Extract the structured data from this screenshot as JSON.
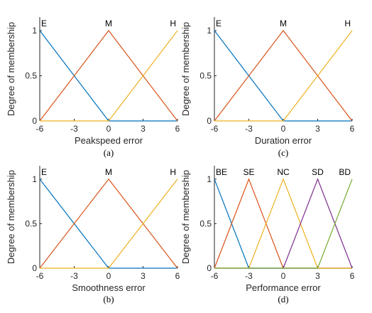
{
  "chart_data": [
    {
      "type": "line",
      "caption": "(a)",
      "xlabel": "Peakspeed error",
      "ylabel": "Degree of membership",
      "xlim": [
        -6,
        6
      ],
      "ylim": [
        0,
        1.15
      ],
      "xticks": [
        "-6",
        "-3",
        "0",
        "3",
        "6"
      ],
      "yticks": [
        "0",
        "0.5",
        "1"
      ],
      "series": [
        {
          "name": "E",
          "x": [
            -6,
            0,
            6
          ],
          "y": [
            1,
            0,
            0
          ]
        },
        {
          "name": "M",
          "x": [
            -6,
            0,
            6
          ],
          "y": [
            0,
            1,
            0
          ]
        },
        {
          "name": "H",
          "x": [
            -6,
            0,
            6
          ],
          "y": [
            0,
            0,
            1
          ]
        }
      ]
    },
    {
      "type": "line",
      "caption": "(c)",
      "xlabel": "Duration error",
      "ylabel": "Degree of membership",
      "xlim": [
        -6,
        6
      ],
      "ylim": [
        0,
        1.15
      ],
      "xticks": [
        "-6",
        "-3",
        "0",
        "3",
        "6"
      ],
      "yticks": [
        "0",
        "0.5",
        "1"
      ],
      "series": [
        {
          "name": "E",
          "x": [
            -6,
            0,
            6
          ],
          "y": [
            1,
            0,
            0
          ]
        },
        {
          "name": "M",
          "x": [
            -6,
            0,
            6
          ],
          "y": [
            0,
            1,
            0
          ]
        },
        {
          "name": "H",
          "x": [
            -6,
            0,
            6
          ],
          "y": [
            0,
            0,
            1
          ]
        }
      ]
    },
    {
      "type": "line",
      "caption": "(b)",
      "xlabel": "Smoothness error",
      "ylabel": "Degree of membership",
      "xlim": [
        -6,
        6
      ],
      "ylim": [
        0,
        1.15
      ],
      "xticks": [
        "-6",
        "-3",
        "0",
        "3",
        "6"
      ],
      "yticks": [
        "0",
        "0.5",
        "1"
      ],
      "series": [
        {
          "name": "E",
          "x": [
            -6,
            0,
            6
          ],
          "y": [
            1,
            0,
            0
          ]
        },
        {
          "name": "M",
          "x": [
            -6,
            0,
            6
          ],
          "y": [
            0,
            1,
            0
          ]
        },
        {
          "name": "H",
          "x": [
            -6,
            0,
            6
          ],
          "y": [
            0,
            0,
            1
          ]
        }
      ]
    },
    {
      "type": "line",
      "caption": "(d)",
      "xlabel": "Performance error",
      "ylabel": "Degree of membership",
      "xlim": [
        -6,
        6
      ],
      "ylim": [
        0,
        1.15
      ],
      "xticks": [
        "-6",
        "-3",
        "0",
        "3",
        "6"
      ],
      "yticks": [
        "0",
        "0.5",
        "1"
      ],
      "series": [
        {
          "name": "BE",
          "x": [
            -6,
            -3,
            6
          ],
          "y": [
            1,
            0,
            0
          ]
        },
        {
          "name": "SE",
          "x": [
            -6,
            -3,
            0,
            6
          ],
          "y": [
            0,
            1,
            0,
            0
          ]
        },
        {
          "name": "NC",
          "x": [
            -6,
            -3,
            0,
            3,
            6
          ],
          "y": [
            0,
            0,
            1,
            0,
            0
          ]
        },
        {
          "name": "SD",
          "x": [
            -6,
            0,
            3,
            6
          ],
          "y": [
            0,
            0,
            1,
            0
          ]
        },
        {
          "name": "BD",
          "x": [
            -6,
            3,
            6
          ],
          "y": [
            0,
            0,
            1
          ]
        }
      ]
    }
  ],
  "colors": {
    "blue": "#0072BD",
    "orange": "#D95319",
    "yellow": "#EDB120",
    "purple": "#7E2F8E",
    "green": "#77AC30",
    "axis": "#262626"
  }
}
